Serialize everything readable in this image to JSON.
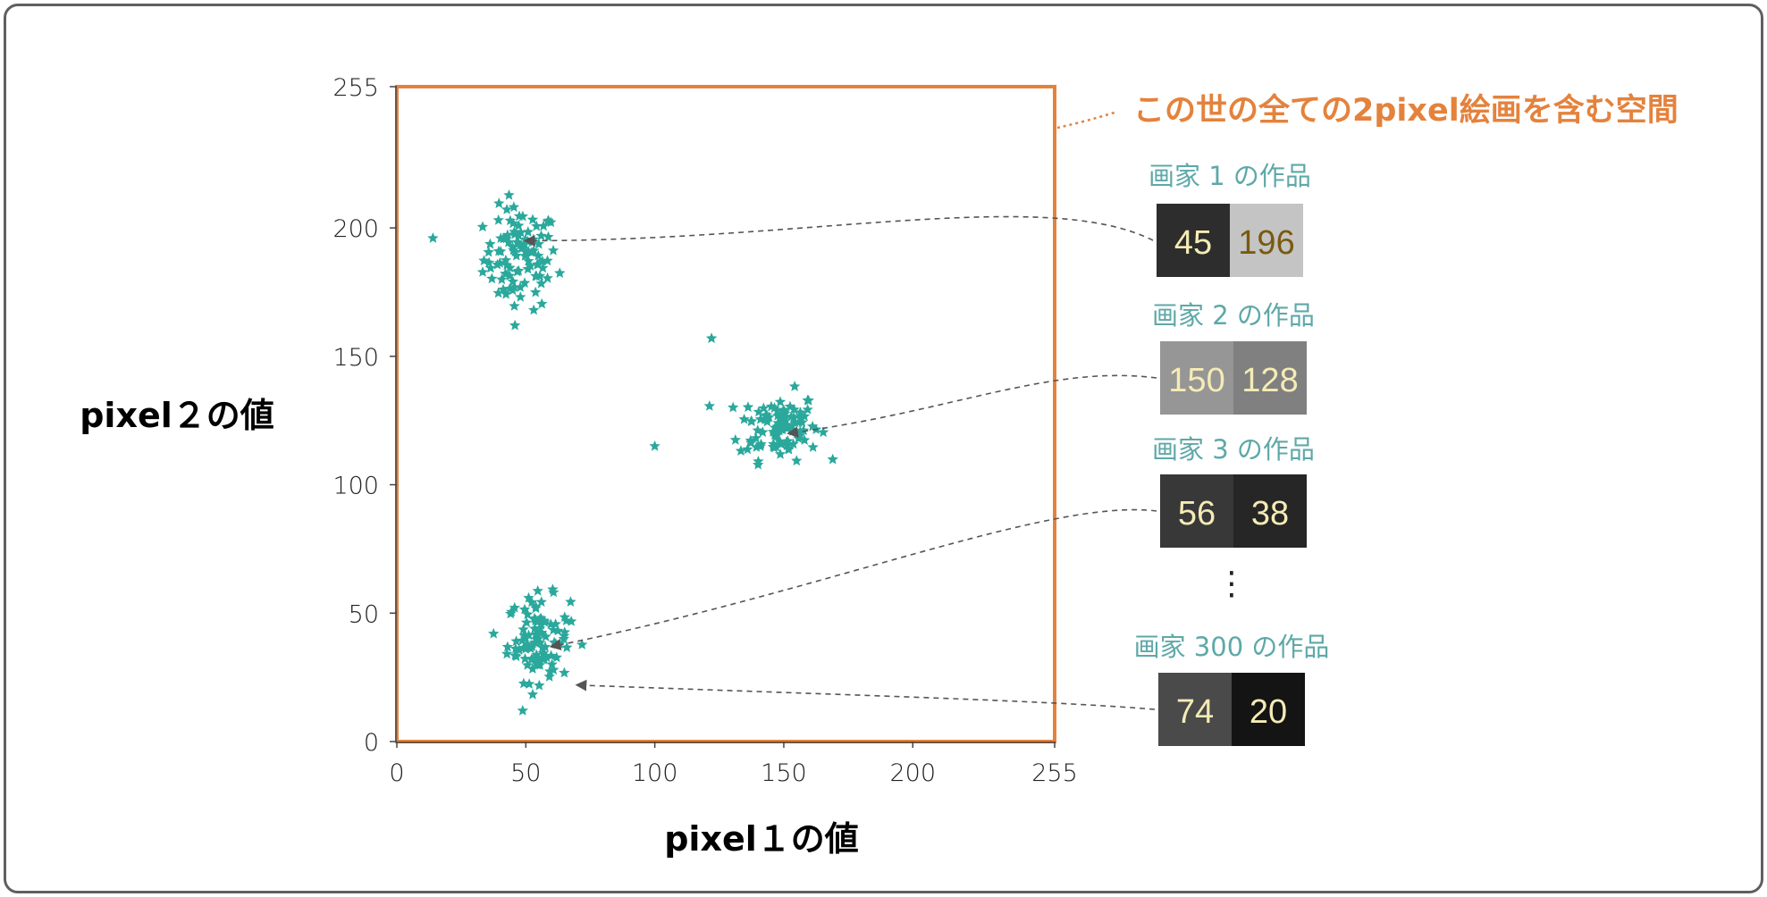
{
  "chart_data": {
    "type": "scatter",
    "xlabel": "pixel１の値",
    "ylabel": "pixel２の値",
    "xlim": [
      0,
      255
    ],
    "ylim": [
      0,
      255
    ],
    "x_ticks": [
      "0",
      "50",
      "100",
      "150",
      "200",
      "255"
    ],
    "y_ticks": [
      "0",
      "50",
      "100",
      "150",
      "200",
      "255"
    ],
    "marker": "star",
    "colors": {
      "points": "#2BA89C",
      "frame": "#E4823C",
      "arrow": "#555555"
    },
    "clusters": [
      {
        "center": [
          48,
          188
        ],
        "spread": [
          13,
          18
        ],
        "count": 100
      },
      {
        "center": [
          148,
          123
        ],
        "spread": [
          14,
          12
        ],
        "count": 100
      },
      {
        "center": [
          55,
          40
        ],
        "spread": [
          11,
          15
        ],
        "count": 100
      }
    ],
    "outliers": [
      [
        100,
        115
      ],
      [
        122,
        157
      ],
      [
        14,
        196
      ]
    ]
  },
  "space_label": "この世の全ての2pixel絵画を含む空間",
  "artists": [
    {
      "label": "画家 1 の作品",
      "p1": 45,
      "p2": 196,
      "p1_text": "45",
      "p2_text": "196",
      "p1_color": "#F5EBB5",
      "p2_color": "#7A5A10",
      "target": [
        50,
        195
      ]
    },
    {
      "label": "画家 2 の作品",
      "p1": 150,
      "p2": 128,
      "p1_text": "150",
      "p2_text": "128",
      "p1_color": "#F5EBB5",
      "p2_color": "#F5EBB5",
      "target": [
        152,
        120
      ]
    },
    {
      "label": "画家 3 の作品",
      "p1": 56,
      "p2": 38,
      "p1_text": "56",
      "p2_text": "38",
      "p1_color": "#F5EBB5",
      "p2_color": "#F5EBB5",
      "target": [
        60,
        37
      ]
    },
    {
      "label": "画家 300 の作品",
      "p1": 74,
      "p2": 20,
      "p1_text": "74",
      "p2_text": "20",
      "p1_color": "#F5EBB5",
      "p2_color": "#F5EBB5",
      "target": [
        70,
        22
      ]
    }
  ],
  "ellipsis": "⋮"
}
